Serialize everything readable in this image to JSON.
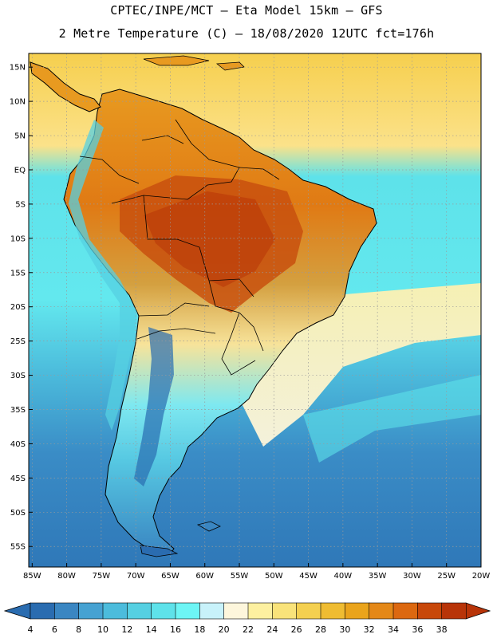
{
  "header": {
    "line1": "CPTEC/INPE/MCT –  Eta Model 15km – GFS",
    "line2": "2 Metre Temperature (C) – 18/08/2020 12UTC fct=176h"
  },
  "map": {
    "lat_labels": [
      "15N",
      "10N",
      "5N",
      "EQ",
      "5S",
      "10S",
      "15S",
      "20S",
      "25S",
      "30S",
      "35S",
      "40S",
      "45S",
      "50S",
      "55S"
    ],
    "lon_labels": [
      "85W",
      "80W",
      "75W",
      "70W",
      "65W",
      "60W",
      "55W",
      "50W",
      "45W",
      "40W",
      "35W",
      "30W",
      "25W",
      "20W"
    ],
    "lat_range": [
      17,
      -58
    ],
    "lon_range": [
      -85.5,
      -20
    ]
  },
  "colorbar": {
    "values": [
      "4",
      "6",
      "8",
      "10",
      "12",
      "14",
      "16",
      "18",
      "20",
      "22",
      "24",
      "26",
      "28",
      "30",
      "32",
      "34",
      "36",
      "38"
    ],
    "colors": [
      "#2a6cb0",
      "#3a86c2",
      "#46a2d2",
      "#4cbcdc",
      "#56d0e2",
      "#5ee2ea",
      "#6df5f5",
      "#c8f2fa",
      "#fdf6dc",
      "#fdf0a0",
      "#f9e37a",
      "#f4d050",
      "#efbc32",
      "#eaa41c",
      "#e48818",
      "#dc6810",
      "#c8480a",
      "#b83408"
    ]
  },
  "colors": {
    "ocean_warm": "#fae07a",
    "ocean_mid": "#5ee2ea",
    "ocean_cold": "#2f78b8",
    "land_hot": "#c8500e",
    "land_warm": "#e89a20",
    "border": "#000000"
  }
}
